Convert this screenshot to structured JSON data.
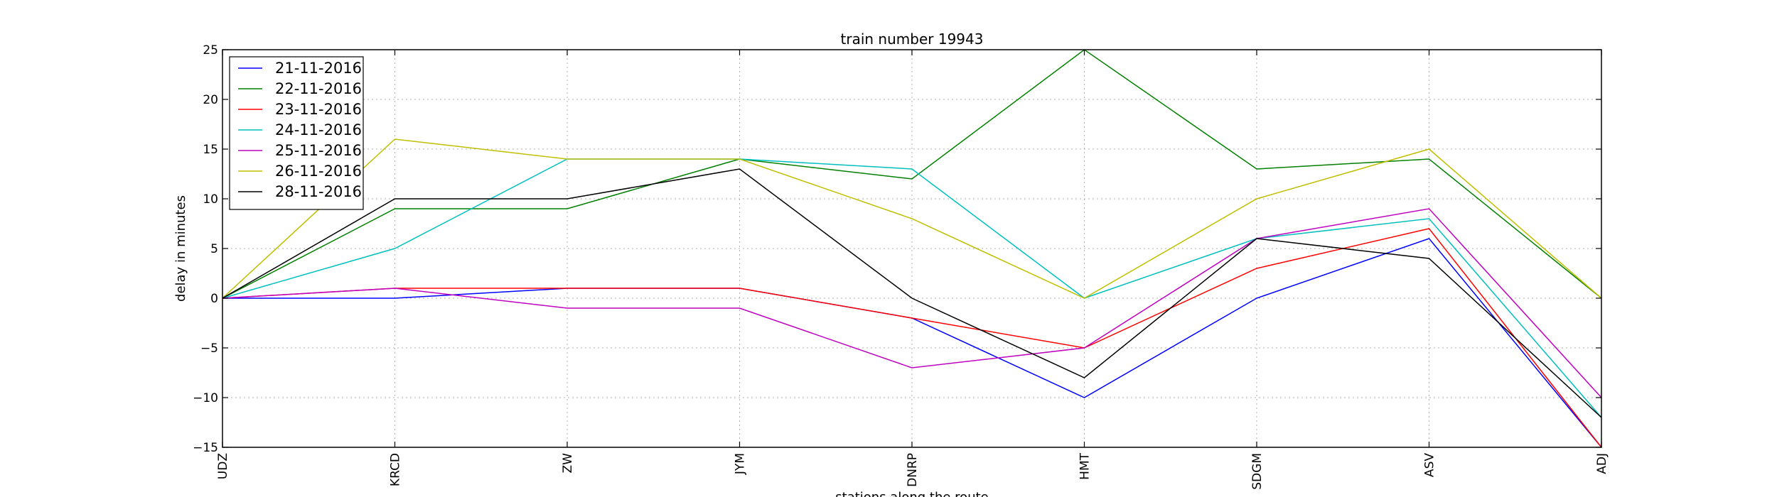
{
  "chart_data": {
    "type": "line",
    "title": "train number 19943",
    "xlabel": "stations along the route",
    "ylabel": "delay in minutes",
    "categories": [
      "UDZ",
      "KRCD",
      "ZW",
      "JYM",
      "DNRP",
      "HMT",
      "SDGM",
      "ASV",
      "ADJ"
    ],
    "ylim": [
      -15,
      25
    ],
    "yticks": [
      -15,
      -10,
      -5,
      0,
      5,
      10,
      15,
      20,
      25
    ],
    "grid": true,
    "legend_position": "top-left",
    "series": [
      {
        "name": "21-11-2016",
        "color": "#0000ff",
        "values": [
          0,
          0,
          1,
          1,
          -2,
          -10,
          0,
          6,
          -15
        ]
      },
      {
        "name": "22-11-2016",
        "color": "#008000",
        "values": [
          0,
          9,
          9,
          14,
          12,
          25,
          13,
          14,
          0
        ]
      },
      {
        "name": "23-11-2016",
        "color": "#ff0000",
        "values": [
          0,
          1,
          1,
          1,
          -2,
          -5,
          3,
          7,
          -15
        ]
      },
      {
        "name": "24-11-2016",
        "color": "#00bfbf",
        "values": [
          0,
          5,
          14,
          14,
          13,
          0,
          6,
          8,
          -12
        ]
      },
      {
        "name": "25-11-2016",
        "color": "#bf00bf",
        "values": [
          0,
          1,
          -1,
          -1,
          -7,
          -5,
          6,
          9,
          -10
        ]
      },
      {
        "name": "26-11-2016",
        "color": "#bfbf00",
        "values": [
          0,
          16,
          14,
          14,
          8,
          0,
          10,
          15,
          0
        ]
      },
      {
        "name": "28-11-2016",
        "color": "#000000",
        "values": [
          0,
          10,
          10,
          13,
          0,
          -8,
          6,
          4,
          -12
        ]
      }
    ]
  }
}
